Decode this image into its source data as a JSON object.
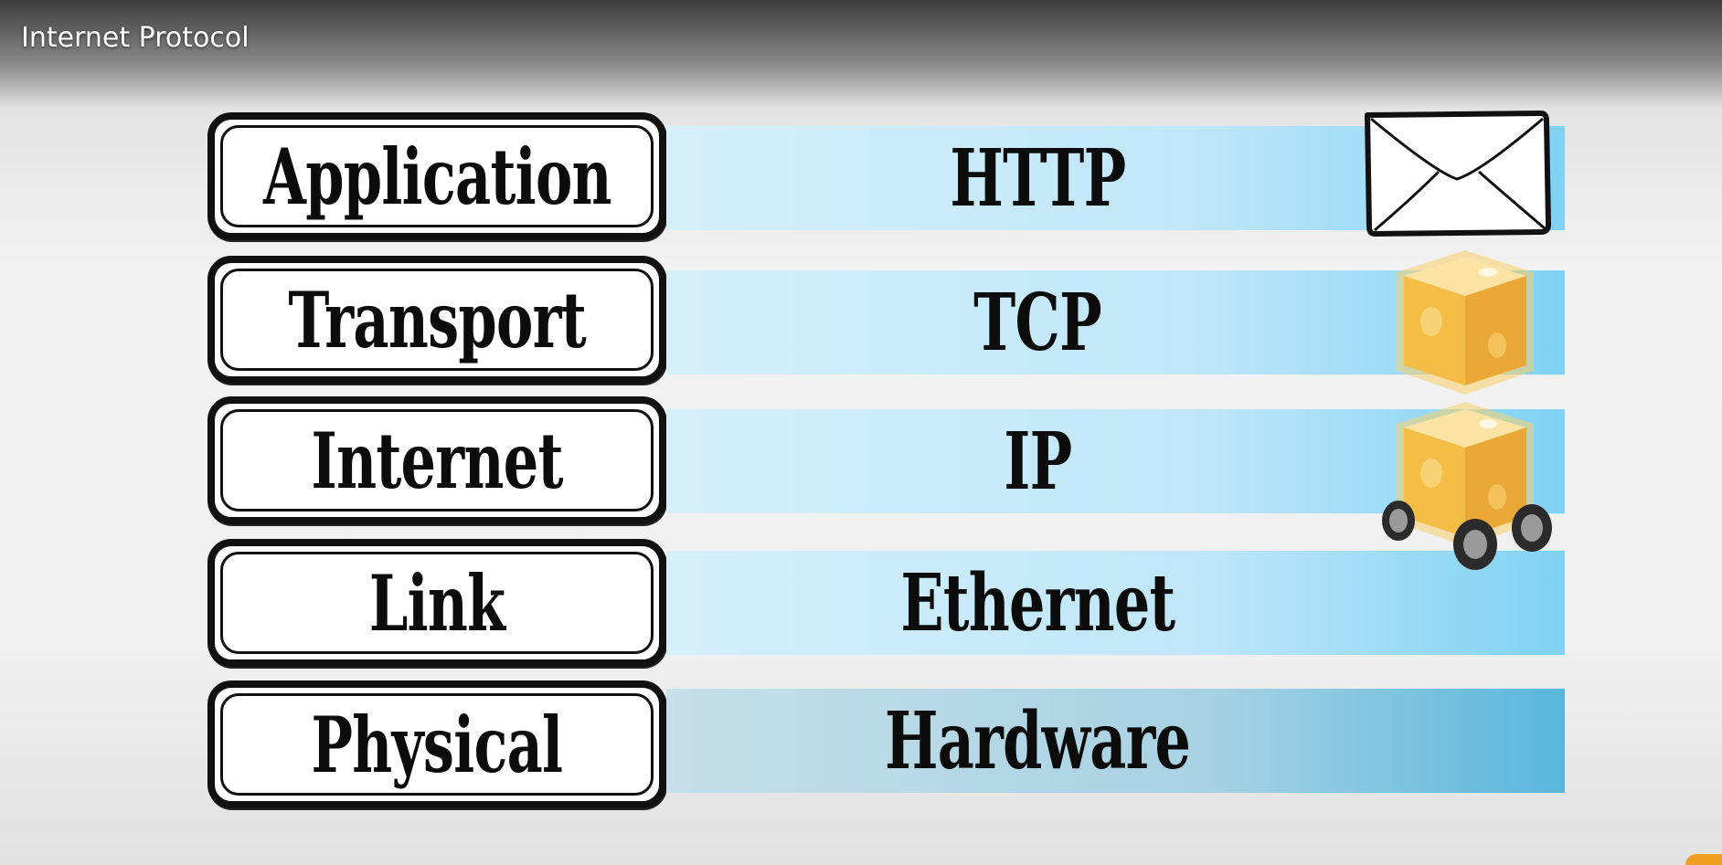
{
  "header": {
    "title": "Internet Protocol"
  },
  "layers": [
    {
      "name": "Application",
      "protocol": "HTTP"
    },
    {
      "name": "Transport",
      "protocol": "TCP"
    },
    {
      "name": "Internet",
      "protocol": "IP"
    },
    {
      "name": "Link",
      "protocol": "Ethernet"
    },
    {
      "name": "Physical",
      "protocol": "Hardware"
    }
  ],
  "icons": {
    "application": "envelope-icon",
    "transport": "box-icon",
    "internet": "box-on-wheels-icon"
  },
  "colors": {
    "band_light": "#bfe6f8",
    "band_dark": "#5ab7dc",
    "box_fill": "#f5c34a",
    "outline": "#111111"
  }
}
